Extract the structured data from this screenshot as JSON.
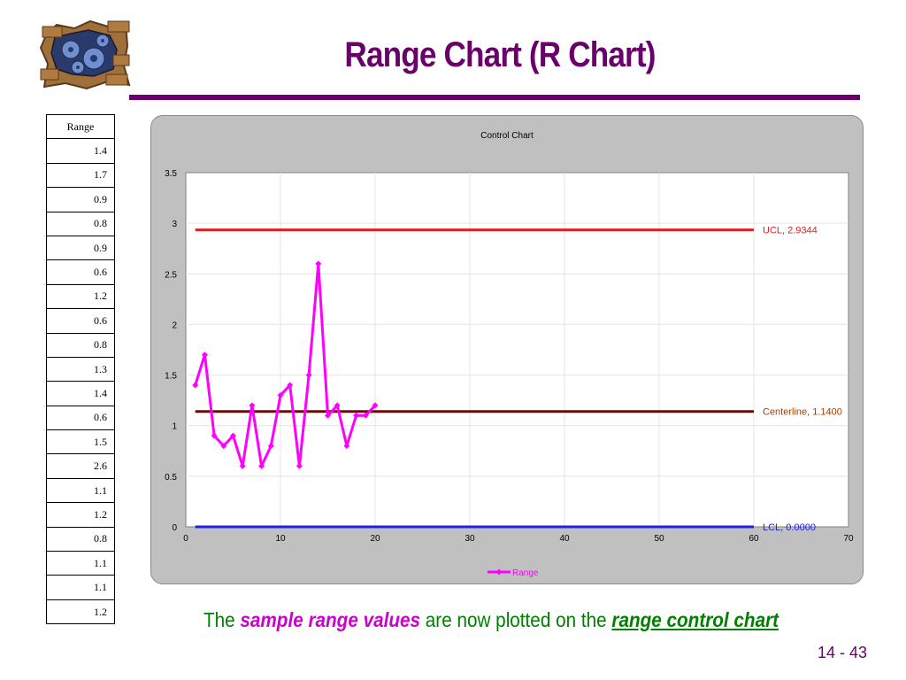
{
  "slide": {
    "title": "Range Chart (R Chart)",
    "caption_parts": [
      "The",
      "sample range values",
      "are now plotted on the",
      "range control chart"
    ],
    "page_number": "14 - 43"
  },
  "table": {
    "header": "Range",
    "values": [
      "1.4",
      "1.7",
      "0.9",
      "0.8",
      "0.9",
      "0.6",
      "1.2",
      "0.6",
      "0.8",
      "1.3",
      "1.4",
      "0.6",
      "1.5",
      "2.6",
      "1.1",
      "1.2",
      "0.8",
      "1.1",
      "1.1",
      "1.2"
    ]
  },
  "chart_data": {
    "type": "line",
    "title": "Control Chart",
    "xlabel": "",
    "ylabel": "",
    "xlim": [
      0,
      70
    ],
    "ylim": [
      0,
      3.5
    ],
    "x_ticks": [
      0,
      10,
      20,
      30,
      40,
      50,
      60,
      70
    ],
    "y_ticks": [
      0,
      0.5,
      1,
      1.5,
      2,
      2.5,
      3,
      3.5
    ],
    "grid": true,
    "legend_position": "bottom",
    "series": [
      {
        "name": "Range",
        "color": "#ff00ff",
        "x": [
          1,
          2,
          3,
          4,
          5,
          6,
          7,
          8,
          9,
          10,
          11,
          12,
          13,
          14,
          15,
          16,
          17,
          18,
          19,
          20
        ],
        "values": [
          1.4,
          1.7,
          0.9,
          0.8,
          0.9,
          0.6,
          1.2,
          0.6,
          0.8,
          1.3,
          1.4,
          0.6,
          1.5,
          2.6,
          1.1,
          1.2,
          0.8,
          1.1,
          1.1,
          1.2
        ]
      }
    ],
    "lines": [
      {
        "label": "UCL, 2.9344",
        "value": 2.9344,
        "x_range": [
          1,
          60
        ],
        "color": "#e02020",
        "label_color": "#e02020"
      },
      {
        "label": "Centerline, 1.1400",
        "value": 1.14,
        "x_range": [
          1,
          60
        ],
        "color": "#800000",
        "label_color": "#a04000"
      },
      {
        "label": "LCL, 0.0000",
        "value": 0.0,
        "x_range": [
          1,
          60
        ],
        "color": "#2020e0",
        "label_color": "#2020e0"
      }
    ]
  }
}
